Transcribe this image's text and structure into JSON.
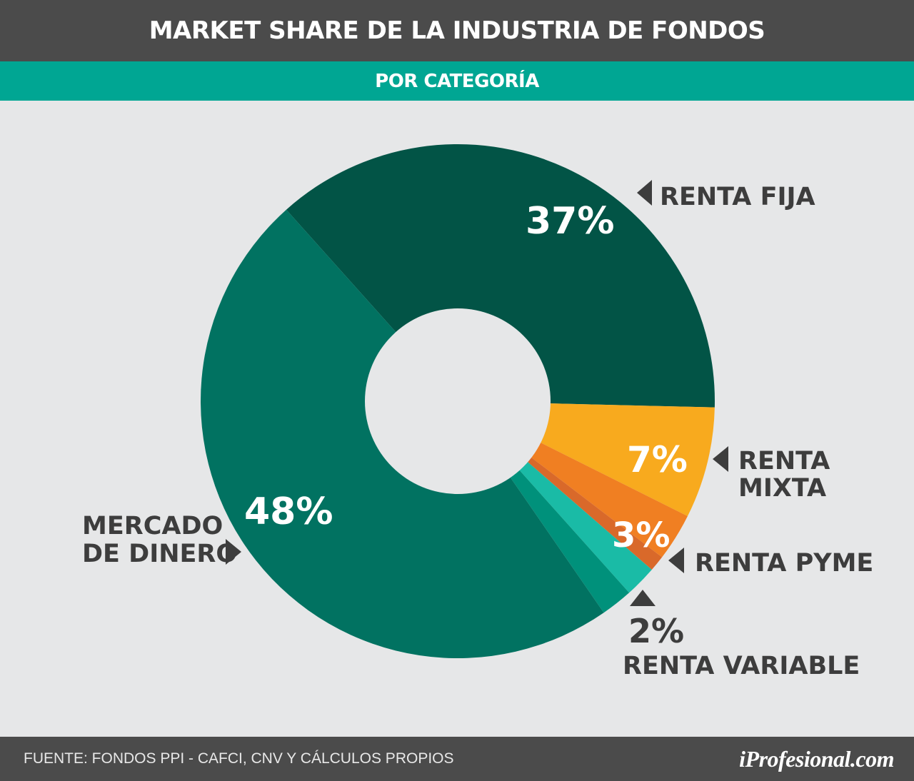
{
  "header": {
    "title": "MARKET SHARE DE LA INDUSTRIA DE FONDOS",
    "subtitle": "POR CATEGORÍA"
  },
  "footer": {
    "source": "FUENTE: FONDOS PPI - CAFCI, CNV Y CÁLCULOS PROPIOS",
    "logo": "iProfesional.com"
  },
  "colors": {
    "header_bg": "#4b4b4b",
    "subheader_bg": "#00a693",
    "background": "#e6e7e8"
  },
  "chart_data": {
    "type": "pie",
    "title": "MARKET SHARE DE LA INDUSTRIA DE FONDOS",
    "subtitle": "POR CATEGORÍA",
    "donut": true,
    "slices": [
      {
        "label": "RENTA FIJA",
        "value": 37,
        "value_label": "37%",
        "color": "#025446"
      },
      {
        "label": "RENTA MIXTA",
        "value": 7,
        "value_label": "7%",
        "color": "#f8aa1e"
      },
      {
        "label": "RENTA PYME",
        "value": 3,
        "value_label": "3%",
        "color": "#f07f22"
      },
      {
        "label": "",
        "value": 1,
        "value_label": "",
        "color": "#d9692a"
      },
      {
        "label": "RENTA VARIABLE",
        "value": 2,
        "value_label": "2%",
        "color": "#1abba6"
      },
      {
        "label": "",
        "value": 2,
        "value_label": "",
        "color": "#00917b"
      },
      {
        "label": "MERCADO DE DINERO",
        "value": 48,
        "value_label": "48%",
        "color": "#017261"
      }
    ]
  }
}
